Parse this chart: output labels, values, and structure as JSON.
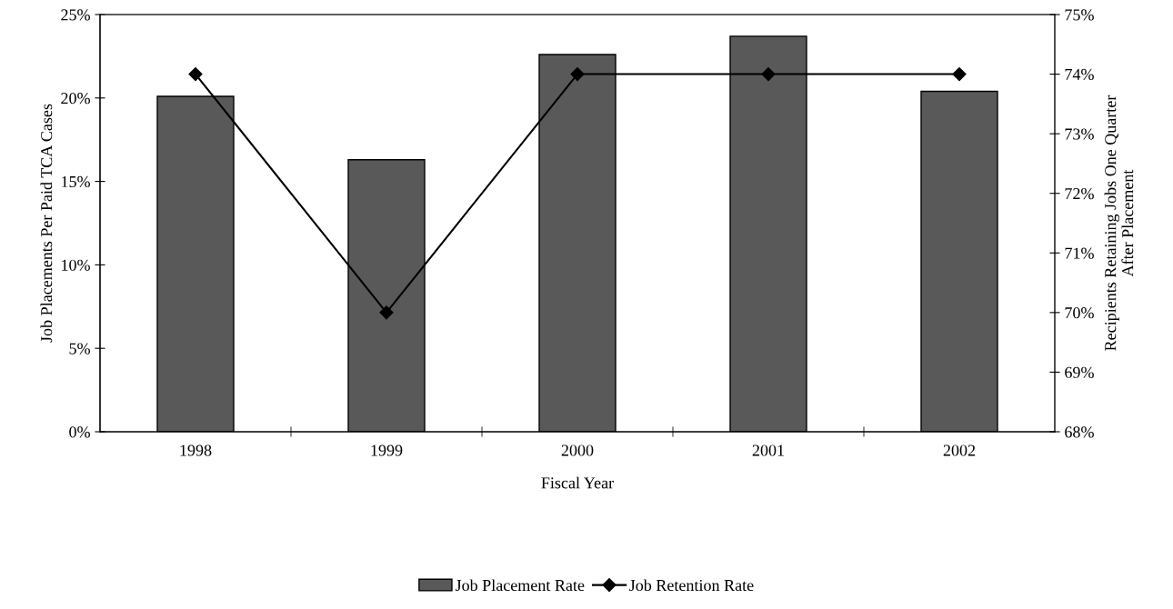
{
  "chart_data": {
    "type": "bar",
    "xlabel": "Fiscal Year",
    "ylabel": "Job Placements Per Paid TCA Cases",
    "y2label": "Recipients Retaining Jobs One Quarter\nAfter Placement",
    "categories": [
      "1998",
      "1999",
      "2000",
      "2001",
      "2002"
    ],
    "series": [
      {
        "name": "Job Placement Rate",
        "color": "#595959",
        "values": [
          20.1,
          16.3,
          22.6,
          23.7,
          20.4
        ]
      },
      {
        "name": "Job Retention Rate",
        "type": "line",
        "axis": "y2",
        "color": "#000000",
        "marker": "diamond",
        "values": [
          74,
          70,
          74,
          74,
          74
        ]
      }
    ],
    "ylim": [
      0,
      25
    ],
    "yticks": [
      {
        "value": 0,
        "label": "0%"
      },
      {
        "value": 5,
        "label": "5%"
      },
      {
        "value": 10,
        "label": "10%"
      },
      {
        "value": 15,
        "label": "15%"
      },
      {
        "value": 20,
        "label": "20%"
      },
      {
        "value": 25,
        "label": "25%"
      }
    ],
    "y2lim": [
      68,
      75
    ],
    "y2ticks": [
      {
        "value": 68,
        "label": "68%"
      },
      {
        "value": 69,
        "label": "69%"
      },
      {
        "value": 70,
        "label": "70%"
      },
      {
        "value": 71,
        "label": "71%"
      },
      {
        "value": 72,
        "label": "72%"
      },
      {
        "value": 73,
        "label": "73%"
      },
      {
        "value": 74,
        "label": "74%"
      },
      {
        "value": 75,
        "label": "75%"
      }
    ],
    "grid": false,
    "legend": "bottom"
  }
}
